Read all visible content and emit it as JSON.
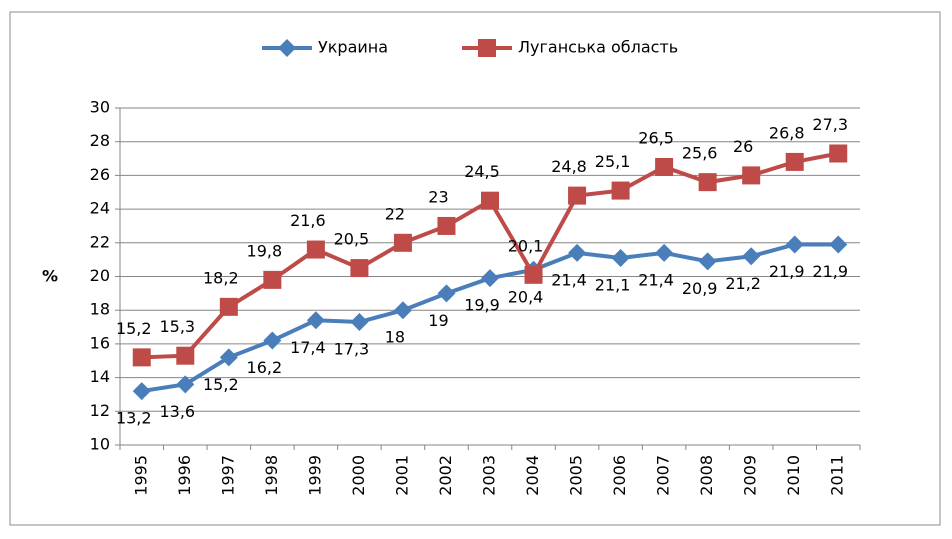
{
  "chart_data": {
    "type": "line",
    "y_label": "%",
    "categories": [
      "1995",
      "1996",
      "1997",
      "1998",
      "1999",
      "2000",
      "2001",
      "2002",
      "2003",
      "2004",
      "2005",
      "2006",
      "2007",
      "2008",
      "2009",
      "2010",
      "2011"
    ],
    "series": [
      {
        "name": "Украина",
        "color": "#4a7ebb",
        "marker": "diamond",
        "label_position": "below",
        "values": [
          13.2,
          13.6,
          15.2,
          16.2,
          17.4,
          17.3,
          18,
          19,
          19.9,
          20.4,
          21.4,
          21.1,
          21.4,
          20.9,
          21.2,
          21.9,
          21.9
        ],
        "value_labels": [
          "13,2",
          "13,6",
          "15,2",
          "16,2",
          "17,4",
          "17,3",
          "18",
          "19",
          "19,9",
          "20,4",
          "21,4",
          "21,1",
          "21,4",
          "20,9",
          "21,2",
          "21,9",
          "21,9"
        ]
      },
      {
        "name": "Луганська область",
        "color": "#be4b48",
        "marker": "square",
        "label_position": "above",
        "values": [
          15.2,
          15.3,
          18.2,
          19.8,
          21.6,
          20.5,
          22,
          23,
          24.5,
          20.1,
          24.8,
          25.1,
          26.5,
          25.6,
          26,
          26.8,
          27.3
        ],
        "value_labels": [
          "15,2",
          "15,3",
          "18,2",
          "19,8",
          "21,6",
          "20,5",
          "22",
          "23",
          "24,5",
          "20,1",
          "24,8",
          "25,1",
          "26,5",
          "25,6",
          "26",
          "26,8",
          "27,3"
        ]
      }
    ],
    "ylim": [
      10,
      30
    ],
    "yticks": [
      10,
      12,
      14,
      16,
      18,
      20,
      22,
      24,
      26,
      28,
      30
    ],
    "grid": true,
    "legend": "top"
  }
}
